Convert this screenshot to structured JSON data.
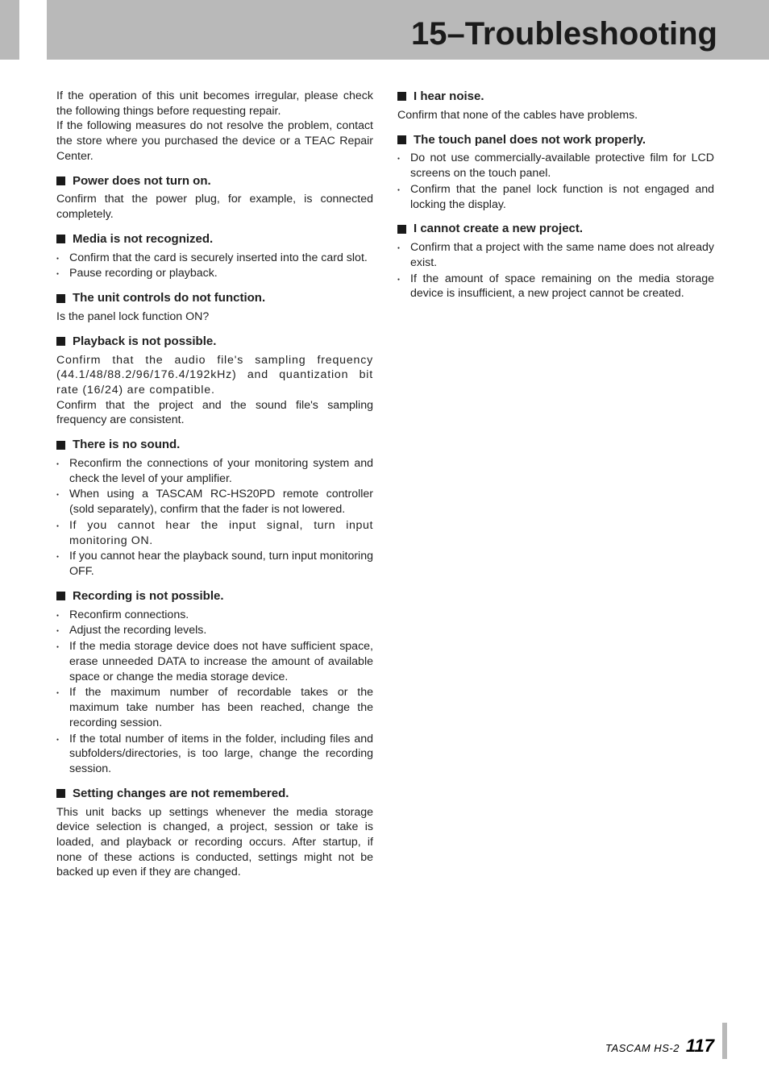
{
  "chapter_title": "15–Troubleshooting",
  "colors": {
    "header_bg": "#b9b9b9",
    "text": "#212121",
    "page_bg": "#ffffff"
  },
  "intro": {
    "p1": "If the operation of this unit becomes irregular, please check the following things before requesting repair.",
    "p2": "If the following measures do not resolve the problem, contact the store where you purchased the device or a TEAC Repair Center."
  },
  "left": [
    {
      "heading": "Power does not turn on.",
      "body": "Confirm that the power plug, for example, is connected completely."
    },
    {
      "heading": "Media is not recognized.",
      "items": [
        "Confirm that the card is securely inserted into the card slot.",
        "Pause recording or playback."
      ]
    },
    {
      "heading": "The unit controls do not function.",
      "body": "Is the panel lock function ON?"
    },
    {
      "heading": "Playback is not possible.",
      "body": "Confirm that the audio file's sampling frequency (44.1/48/88.2/96/176.4/192kHz) and quantization bit rate (16/24) are compatible.",
      "body2": "Confirm that the project and the sound file's sampling frequency are consistent."
    },
    {
      "heading": "There is no sound.",
      "items": [
        "Reconfirm the connections of your monitoring system and check the level of your amplifier.",
        "When using a TASCAM RC-HS20PD remote controller (sold separately), confirm that the fader is not lowered.",
        "If you cannot hear the input signal, turn input monitoring ON.",
        "If you cannot hear the playback sound, turn input monitoring OFF."
      ]
    },
    {
      "heading": "Recording is not possible.",
      "items": [
        "Reconfirm connections.",
        "Adjust the recording levels.",
        "If the media storage device does not have sufficient space, erase unneeded DATA to increase the amount of available space or change the media storage device.",
        "If the maximum number of recordable takes or the maximum take number has been reached, change the recording session.",
        "If the total number of items in the folder, including files and subfolders/directories, is too large, change the recording session."
      ]
    },
    {
      "heading": "Setting changes are not remembered.",
      "body": "This unit backs up settings whenever the media storage device selection is changed, a project, session or take is loaded, and playback or recording occurs. After startup, if none of these actions is conducted, settings might not be backed up even if they are changed."
    }
  ],
  "right": [
    {
      "heading": "I hear noise.",
      "body": "Confirm that none of the cables have problems."
    },
    {
      "heading": "The touch panel does not work properly.",
      "items": [
        "Do not use commercially-available protective film for LCD screens on the touch panel.",
        "Confirm that the panel lock function is not engaged and locking the display."
      ]
    },
    {
      "heading": "I cannot create a new project.",
      "items": [
        "Confirm that a project with the same name does not already exist.",
        "If the amount of space remaining on the media storage device is insufficient, a new project cannot be created."
      ]
    }
  ],
  "footer": {
    "brand": "TASCAM HS-2",
    "page": "117"
  }
}
